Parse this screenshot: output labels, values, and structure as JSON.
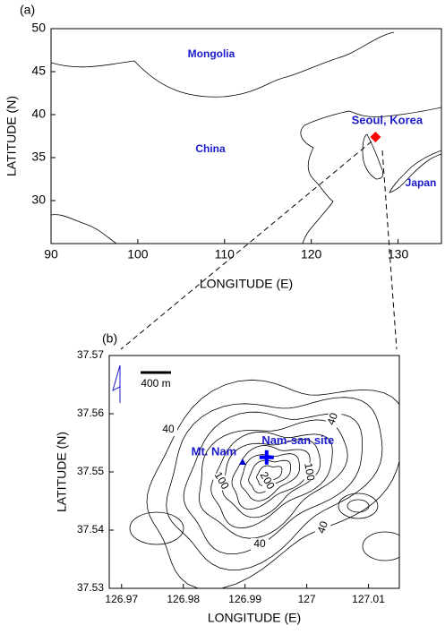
{
  "chart_data": [
    {
      "type": "map",
      "panel_label": "(a)",
      "x_label": "LONGITUDE (E)",
      "y_label": "LATITUDE (N)",
      "xlim": [
        90,
        135
      ],
      "ylim": [
        25,
        50
      ],
      "xticks": [
        90,
        100,
        110,
        120,
        130
      ],
      "yticks": [
        30,
        35,
        40,
        45,
        50
      ],
      "places": [
        {
          "name": "Mongolia"
        },
        {
          "name": "China"
        },
        {
          "name": "Japan"
        }
      ],
      "points": [
        {
          "name": "Seoul, Korea",
          "x": 127.4,
          "y": 37.4,
          "marker": "diamond",
          "color": "#ff0000"
        }
      ]
    },
    {
      "type": "map",
      "panel_label": "(b)",
      "x_label": "LONGITUDE (E)",
      "y_label": "LATITUDE (N)",
      "xlim": [
        126.968,
        127.015
      ],
      "ylim": [
        37.53,
        37.57
      ],
      "xticks": [
        126.97,
        126.98,
        126.99,
        127,
        127.01
      ],
      "yticks": [
        37.53,
        37.54,
        37.55,
        37.56,
        37.57
      ],
      "scale_bar": "400 m",
      "contour_labels": [
        40,
        40,
        100,
        200,
        100,
        40,
        40
      ],
      "points": [
        {
          "name": "Mt. Nam",
          "x": 126.9896,
          "y": 37.5517,
          "marker": "triangle",
          "color": "#0000cc"
        },
        {
          "name": "Nam-san site",
          "x": 126.9935,
          "y": 37.5525,
          "marker": "cross",
          "color": "#0000ff"
        }
      ]
    }
  ]
}
